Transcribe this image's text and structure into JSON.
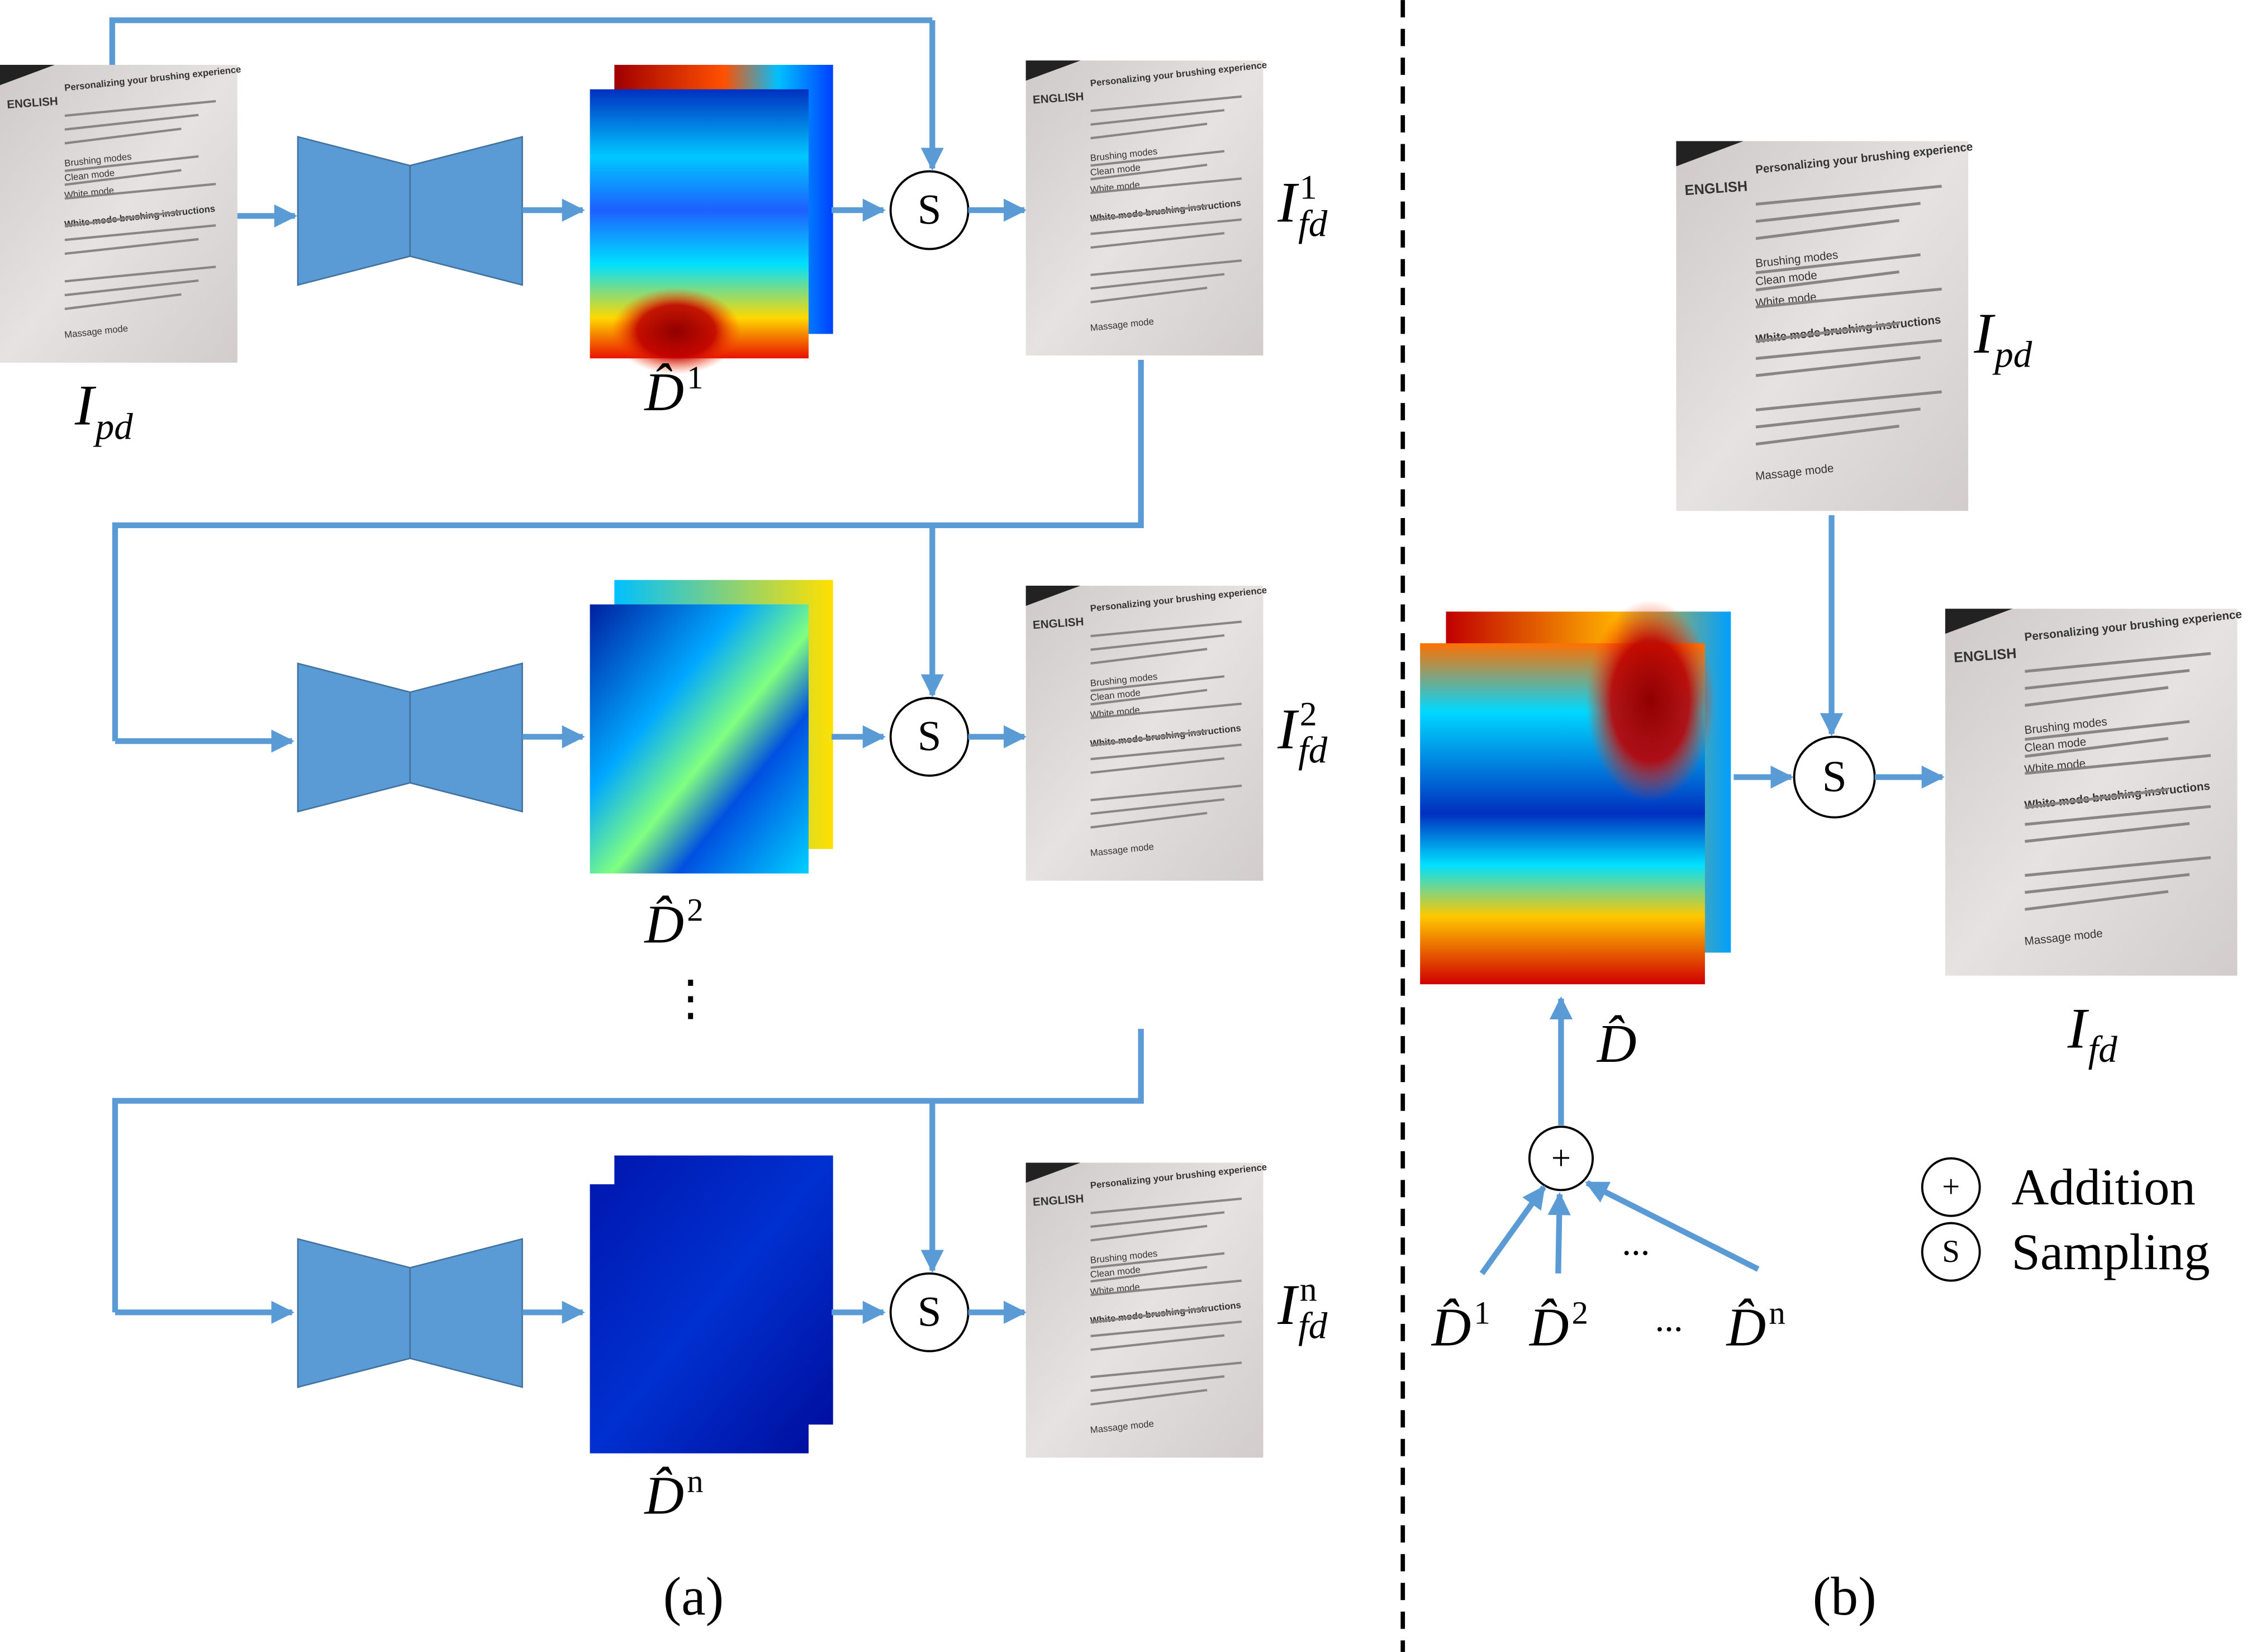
{
  "sampling_symbol": "S",
  "addition_symbol": "+",
  "document_text": [
    "ENGLISH",
    "Personalizing your brushing experience",
    "Brushing modes",
    "Clean mode",
    "White mode",
    "White mode brushing instructions",
    "Massage mode"
  ],
  "panel_a": {
    "caption": "(a)",
    "input_label": {
      "base": "I",
      "sub": "pd"
    },
    "vdots": "⋮",
    "rows": [
      {
        "map_label": {
          "base": "D̂",
          "sup": "1"
        },
        "output_label": {
          "base": "I",
          "sup": "1",
          "sub": "fd"
        }
      },
      {
        "map_label": {
          "base": "D̂",
          "sup": "2"
        },
        "output_label": {
          "base": "I",
          "sup": "2",
          "sub": "fd"
        }
      },
      {
        "map_label": {
          "base": "D̂",
          "sup": "n"
        },
        "output_label": {
          "base": "I",
          "sup": "n",
          "sub": "fd"
        }
      }
    ]
  },
  "panel_b": {
    "caption": "(b)",
    "input_label": {
      "base": "I",
      "sub": "pd"
    },
    "output_label": {
      "base": "I",
      "sub": "fd"
    },
    "map_label": {
      "base": "D̂"
    },
    "ellipsis": "...",
    "sum_terms": [
      {
        "base": "D̂",
        "sup": "1"
      },
      {
        "base": "D̂",
        "sup": "2"
      },
      {
        "base": "D̂",
        "sup": "n"
      }
    ],
    "legend": [
      {
        "symbol": "+",
        "label": "Addition"
      },
      {
        "symbol": "S",
        "label": "Sampling"
      }
    ]
  }
}
